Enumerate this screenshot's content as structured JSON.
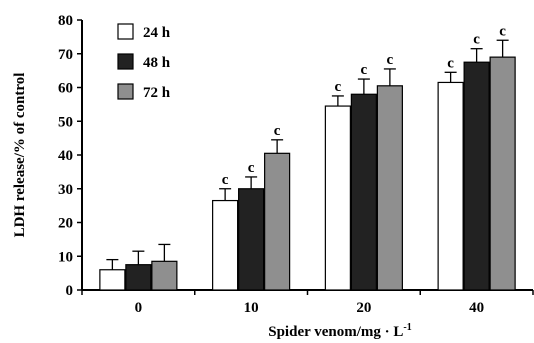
{
  "chart_data": {
    "type": "bar",
    "categories": [
      "0",
      "10",
      "20",
      "40"
    ],
    "series": [
      {
        "name": "24 h",
        "color": "#ffffff",
        "values": [
          6,
          26.5,
          54.5,
          61.5
        ],
        "errors": [
          3,
          3.5,
          3,
          3
        ],
        "labels": [
          "",
          "c",
          "c",
          "c"
        ]
      },
      {
        "name": "48 h",
        "color": "#222222",
        "values": [
          7.5,
          30,
          58,
          67.5
        ],
        "errors": [
          4,
          3.5,
          4.5,
          4
        ],
        "labels": [
          "",
          "c",
          "c",
          "c"
        ]
      },
      {
        "name": "72 h",
        "color": "#8f8f8f",
        "values": [
          8.5,
          40.5,
          60.5,
          69
        ],
        "errors": [
          5,
          4,
          5,
          5
        ],
        "labels": [
          "",
          "c",
          "c",
          "c"
        ]
      }
    ],
    "xlabel": "Spider venom/mg · L",
    "xlabel_sup": "-1",
    "ylabel": "LDH release/% of control",
    "ylim": [
      0,
      80
    ],
    "yticks": [
      0,
      10,
      20,
      30,
      40,
      50,
      60,
      70,
      80
    ],
    "grid": false,
    "legend_position": "top-left"
  }
}
